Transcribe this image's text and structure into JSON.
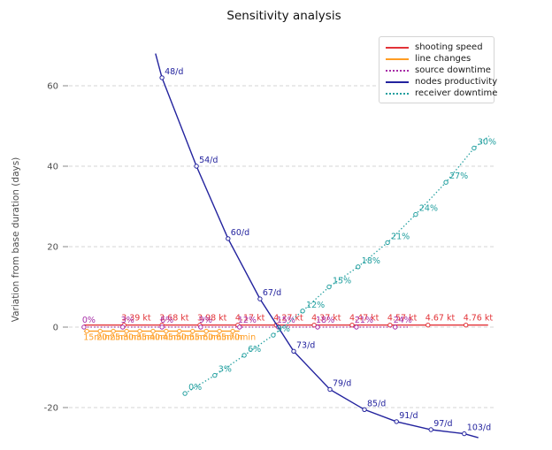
{
  "chart_data": {
    "type": "line",
    "title": "Sensitivity analysis",
    "xlabel": "",
    "ylabel": "Variation from base duration (days)",
    "ylim": [
      -30,
      72
    ],
    "yticks": [
      -20,
      0,
      20,
      40,
      60
    ],
    "grid": true,
    "grid_style": "dashed",
    "grid_color": "#d5d5d5",
    "tick_label_color": "#4d4d4d",
    "legend_position": "upper right",
    "legend": {
      "entries": [
        {
          "label": "shooting speed",
          "color": "#e23338",
          "style": "solid"
        },
        {
          "label": "line changes",
          "color": "#ff9d23",
          "style": "solid"
        },
        {
          "label": "source downtime",
          "color": "#a62ca6",
          "style": "dotted"
        },
        {
          "label": "nodes productivity",
          "color": "#23239e",
          "style": "solid"
        },
        {
          "label": "receiver downtime",
          "color": "#1f9e9e",
          "style": "dotted"
        }
      ]
    },
    "series": [
      {
        "name": "shooting speed",
        "color": "#e23338",
        "style": "solid",
        "units": "kt",
        "label_offset": [
          -3,
          -5
        ],
        "line_ext": {
          "start": [
            0.035,
            0.5
          ],
          "end": [
            0.983,
            0.5
          ]
        },
        "points": [
          {
            "x": 0.129,
            "y": 0.5,
            "label": "3.39 kt"
          },
          {
            "x": 0.218,
            "y": 0.5,
            "label": "3.68 kt"
          },
          {
            "x": 0.307,
            "y": 0.5,
            "label": "3.98 kt"
          },
          {
            "x": 0.396,
            "y": 0.5,
            "label": "4.17 kt"
          },
          {
            "x": 0.486,
            "y": 0.5,
            "label": "4.27 kt"
          },
          {
            "x": 0.575,
            "y": 0.5,
            "label": "4.37 kt"
          },
          {
            "x": 0.664,
            "y": 0.5,
            "label": "4.47 kt"
          },
          {
            "x": 0.753,
            "y": 0.5,
            "label": "4.57 kt"
          },
          {
            "x": 0.842,
            "y": 0.5,
            "label": "4.67 kt"
          },
          {
            "x": 0.931,
            "y": 0.5,
            "label": "4.76 kt"
          }
        ]
      },
      {
        "name": "line changes",
        "color": "#ff9d23",
        "style": "solid",
        "units": "min",
        "label_offset": [
          -4,
          10
        ],
        "line_ext": {
          "start": [
            0.035,
            -1
          ],
          "end": [
            0.4,
            -1
          ]
        },
        "points": [
          {
            "x": 0.042,
            "y": -1,
            "label": "15min"
          },
          {
            "x": 0.073,
            "y": -1,
            "label": "20min"
          },
          {
            "x": 0.104,
            "y": -1,
            "label": "25min"
          },
          {
            "x": 0.135,
            "y": -1,
            "label": "30min"
          },
          {
            "x": 0.166,
            "y": -1,
            "label": "35min"
          },
          {
            "x": 0.197,
            "y": -1,
            "label": "40min"
          },
          {
            "x": 0.228,
            "y": -1,
            "label": "45min"
          },
          {
            "x": 0.259,
            "y": -1,
            "label": "50min"
          },
          {
            "x": 0.29,
            "y": -1,
            "label": "55min"
          },
          {
            "x": 0.322,
            "y": -1,
            "label": "60min"
          },
          {
            "x": 0.353,
            "y": -1,
            "label": "65min"
          },
          {
            "x": 0.384,
            "y": -1,
            "label": "70min"
          }
        ]
      },
      {
        "name": "source downtime",
        "color": "#a62ca6",
        "style": "dotted",
        "units": "%",
        "label_offset": [
          -2,
          -5
        ],
        "line_ext": {
          "start": [
            0.035,
            0
          ],
          "end": [
            0.8,
            0
          ]
        },
        "points": [
          {
            "x": 0.035,
            "y": 0,
            "label": "0%"
          },
          {
            "x": 0.126,
            "y": 0,
            "label": "3%"
          },
          {
            "x": 0.218,
            "y": 0,
            "label": "6%"
          },
          {
            "x": 0.309,
            "y": 0,
            "label": "9%"
          },
          {
            "x": 0.4,
            "y": 0,
            "label": "12%"
          },
          {
            "x": 0.491,
            "y": 0,
            "label": "15%"
          },
          {
            "x": 0.583,
            "y": 0,
            "label": "18%"
          },
          {
            "x": 0.674,
            "y": 0,
            "label": "21%"
          },
          {
            "x": 0.765,
            "y": 0,
            "label": "24%"
          }
        ]
      },
      {
        "name": "nodes productivity",
        "color": "#23239e",
        "style": "solid",
        "units": "/d",
        "label_offset": [
          3,
          -4
        ],
        "line_ext": {
          "start": [
            0.203,
            68
          ],
          "end": [
            0.96,
            -27.5
          ]
        },
        "points": [
          {
            "x": 0.218,
            "y": 62,
            "label": "48/d"
          },
          {
            "x": 0.299,
            "y": 40,
            "label": "54/d"
          },
          {
            "x": 0.373,
            "y": 22,
            "label": "60/d"
          },
          {
            "x": 0.448,
            "y": 7,
            "label": "67/d"
          },
          {
            "x": 0.527,
            "y": -6,
            "label": "73/d"
          },
          {
            "x": 0.612,
            "y": -15.5,
            "label": "79/d"
          },
          {
            "x": 0.693,
            "y": -20.5,
            "label": "85/d"
          },
          {
            "x": 0.768,
            "y": -23.5,
            "label": "91/d"
          },
          {
            "x": 0.849,
            "y": -25.5,
            "label": "97/d"
          },
          {
            "x": 0.927,
            "y": -26.5,
            "label": "103/d"
          }
        ]
      },
      {
        "name": "receiver downtime",
        "color": "#1f9e9e",
        "style": "dotted",
        "units": "%",
        "label_offset": [
          4,
          -4
        ],
        "line_ext": {
          "start": [
            0.272,
            -16.5
          ],
          "end": [
            0.985,
            47.5
          ]
        },
        "points": [
          {
            "x": 0.272,
            "y": -16.5,
            "label": "0%"
          },
          {
            "x": 0.342,
            "y": -12,
            "label": "3%"
          },
          {
            "x": 0.411,
            "y": -7,
            "label": "6%"
          },
          {
            "x": 0.479,
            "y": -2,
            "label": "9%"
          },
          {
            "x": 0.548,
            "y": 4,
            "label": "12%"
          },
          {
            "x": 0.61,
            "y": 10,
            "label": "15%"
          },
          {
            "x": 0.678,
            "y": 15,
            "label": "18%"
          },
          {
            "x": 0.747,
            "y": 21,
            "label": "21%"
          },
          {
            "x": 0.813,
            "y": 28,
            "label": "24%"
          },
          {
            "x": 0.884,
            "y": 36,
            "label": "27%"
          },
          {
            "x": 0.95,
            "y": 44.5,
            "label": "30%"
          }
        ]
      }
    ]
  }
}
